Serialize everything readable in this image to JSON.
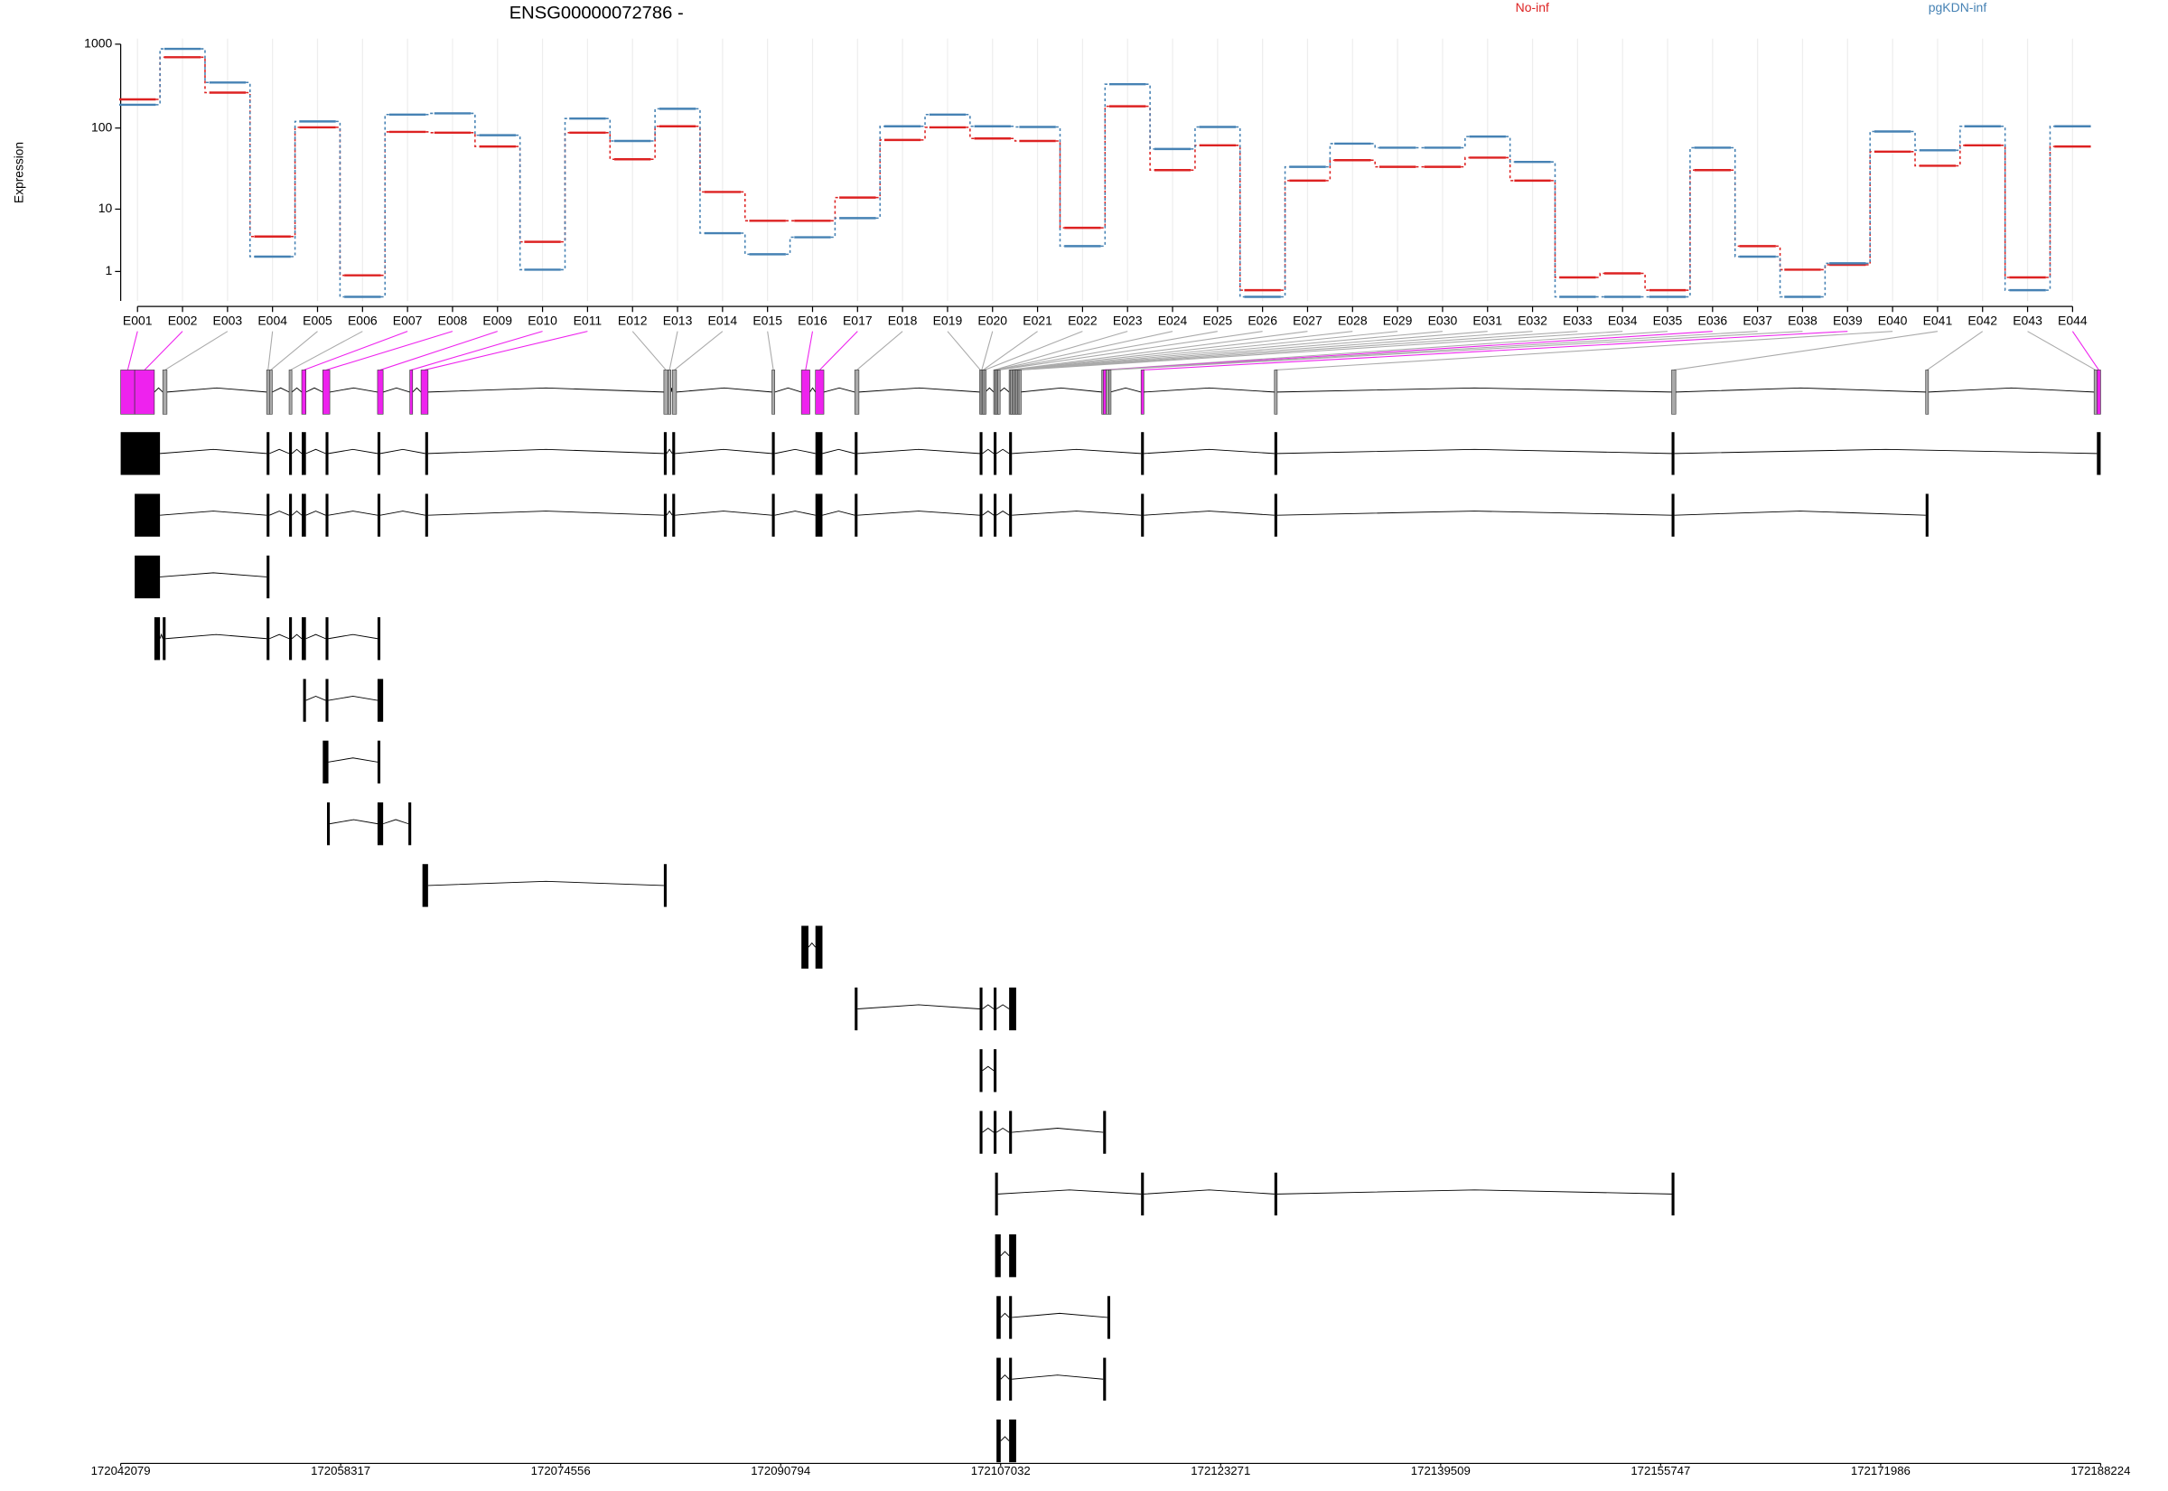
{
  "chart_data": [
    {
      "type": "line",
      "title": "ENSG00000072786 -",
      "y_label": "Expression",
      "categories": [
        "E001",
        "E002",
        "E003",
        "E004",
        "E005",
        "E006",
        "E007",
        "E008",
        "E009",
        "E010",
        "E011",
        "E012",
        "E013",
        "E014",
        "E015",
        "E016",
        "E017",
        "E018",
        "E019",
        "E020",
        "E021",
        "E022",
        "E023",
        "E024",
        "E025",
        "E026",
        "E027",
        "E028",
        "E029",
        "E030",
        "E031",
        "E032",
        "E033",
        "E034",
        "E035",
        "E036",
        "E037",
        "E038",
        "E039",
        "E040",
        "E041",
        "E042",
        "E043",
        "E044"
      ],
      "series": [
        {
          "name": "No-inf",
          "color": "#dd2222",
          "values": [
            220,
            700,
            265,
            4.2,
            102,
            0.8,
            90,
            88,
            60,
            3.5,
            88,
            42,
            105,
            16.6,
            7,
            7,
            14.1,
            72,
            102,
            75,
            70,
            5.6,
            182,
            31,
            62,
            0.2,
            23,
            41,
            34,
            34,
            44,
            23,
            0.7,
            0.9,
            0.2,
            31,
            3,
            1.1,
            1.4,
            52,
            35,
            62,
            0.7,
            60
          ]
        },
        {
          "name": "pgKDN-inf",
          "color": "#4682b4",
          "values": [
            190,
            880,
            350,
            2,
            120,
            0,
            145,
            150,
            82,
            1.1,
            130,
            70,
            170,
            4.7,
            2.2,
            4.1,
            7.6,
            105,
            145,
            105,
            103,
            3,
            334,
            56,
            103,
            0,
            34,
            65,
            58,
            58,
            79,
            39,
            0,
            0,
            0,
            58,
            2,
            0,
            1.5,
            91,
            54,
            105,
            0.2,
            105
          ]
        }
      ],
      "ylim": [
        0,
        1000
      ],
      "yticks": [
        1,
        10,
        100,
        1000
      ],
      "yscale": "log1p",
      "grid": "x",
      "step": true
    },
    {
      "type": "gene-model",
      "xlim": [
        172042079,
        172188224
      ],
      "xticks": [
        172042079,
        172058317,
        172074556,
        172090794,
        172107032,
        172123271,
        172139509,
        172155747,
        172171986,
        172188224
      ],
      "exon_color": "#000000",
      "exons": [
        {
          "start": 172042079,
          "end": 172043115,
          "color": "#ee22ee"
        },
        {
          "start": 172043115,
          "end": 172044565,
          "color": "#ee22ee"
        },
        {
          "start": 172045187,
          "end": 172045498,
          "color": "#aaaaaa"
        },
        {
          "start": 172052853,
          "end": 172053061,
          "color": "#aaaaaa"
        },
        {
          "start": 172053061,
          "end": 172053268,
          "color": "#aaaaaa"
        },
        {
          "start": 172054511,
          "end": 172054718,
          "color": "#aaaaaa"
        },
        {
          "start": 172055443,
          "end": 172055754,
          "color": "#ee22ee"
        },
        {
          "start": 172056997,
          "end": 172057515,
          "color": "#ee22ee"
        },
        {
          "start": 172061038,
          "end": 172061452,
          "color": "#ee22ee"
        },
        {
          "start": 172063421,
          "end": 172063628,
          "color": "#ee22ee"
        },
        {
          "start": 172064249,
          "end": 172064767,
          "color": "#ee22ee"
        },
        {
          "start": 172082172,
          "end": 172082483,
          "color": "#aaaaaa"
        },
        {
          "start": 172082483,
          "end": 172082690,
          "color": "#aaaaaa"
        },
        {
          "start": 172082794,
          "end": 172083105,
          "color": "#aaaaaa"
        },
        {
          "start": 172090149,
          "end": 172090357,
          "color": "#aaaaaa"
        },
        {
          "start": 172092325,
          "end": 172092947,
          "color": "#ee22ee"
        },
        {
          "start": 172093361,
          "end": 172093983,
          "color": "#ee22ee"
        },
        {
          "start": 172096262,
          "end": 172096573,
          "color": "#aaaaaa"
        },
        {
          "start": 172105482,
          "end": 172105586,
          "color": "#aaaaaa"
        },
        {
          "start": 172105586,
          "end": 172105689,
          "color": "#aaaaaa"
        },
        {
          "start": 172105689,
          "end": 172105793,
          "color": "#aaaaaa"
        },
        {
          "start": 172105793,
          "end": 172105896,
          "color": "#aaaaaa"
        },
        {
          "start": 172106518,
          "end": 172106622,
          "color": "#aaaaaa"
        },
        {
          "start": 172106622,
          "end": 172106725,
          "color": "#aaaaaa"
        },
        {
          "start": 172106725,
          "end": 172106829,
          "color": "#aaaaaa"
        },
        {
          "start": 172106829,
          "end": 172106933,
          "color": "#aaaaaa"
        },
        {
          "start": 172107658,
          "end": 172107762,
          "color": "#aaaaaa"
        },
        {
          "start": 172107762,
          "end": 172107865,
          "color": "#aaaaaa"
        },
        {
          "start": 172107865,
          "end": 172107969,
          "color": "#aaaaaa"
        },
        {
          "start": 172107969,
          "end": 172108072,
          "color": "#aaaaaa"
        },
        {
          "start": 172108072,
          "end": 172108176,
          "color": "#aaaaaa"
        },
        {
          "start": 172108176,
          "end": 172108280,
          "color": "#aaaaaa"
        },
        {
          "start": 172108280,
          "end": 172108383,
          "color": "#aaaaaa"
        },
        {
          "start": 172108383,
          "end": 172108487,
          "color": "#aaaaaa"
        },
        {
          "start": 172114495,
          "end": 172114599,
          "color": "#aaaaaa"
        },
        {
          "start": 172114599,
          "end": 172114806,
          "color": "#ee22ee"
        },
        {
          "start": 172114806,
          "end": 172115013,
          "color": "#aaaaaa"
        },
        {
          "start": 172115013,
          "end": 172115117,
          "color": "#aaaaaa"
        },
        {
          "start": 172117396,
          "end": 172117604,
          "color": "#ee22ee"
        },
        {
          "start": 172127238,
          "end": 172127445,
          "color": "#aaaaaa"
        },
        {
          "start": 172156557,
          "end": 172156868,
          "color": "#aaaaaa"
        },
        {
          "start": 172175308,
          "end": 172175516,
          "color": "#aaaaaa"
        },
        {
          "start": 172187741,
          "end": 172187948,
          "color": "#aaaaaa"
        },
        {
          "start": 172187948,
          "end": 172188224,
          "color": "#ee22ee"
        }
      ],
      "transcripts": [
        [
          [
            172042079,
            172044980
          ],
          [
            172052853,
            172053061
          ],
          [
            172054511,
            172054718
          ],
          [
            172055443,
            172055754
          ],
          [
            172057205,
            172057412
          ],
          [
            172061038,
            172061245
          ],
          [
            172064560,
            172064767
          ],
          [
            172082172,
            172082379
          ],
          [
            172082794,
            172083001
          ],
          [
            172090149,
            172090357
          ],
          [
            172093361,
            172093879
          ],
          [
            172096262,
            172096469
          ],
          [
            172105482,
            172105689
          ],
          [
            172106518,
            172106725
          ],
          [
            172107658,
            172107865
          ],
          [
            172117396,
            172117604
          ],
          [
            172127238,
            172127445
          ],
          [
            172156557,
            172156764
          ],
          [
            172187948,
            172188224
          ]
        ],
        [
          [
            172043115,
            172044980
          ],
          [
            172052853,
            172053061
          ],
          [
            172054511,
            172054718
          ],
          [
            172055443,
            172055754
          ],
          [
            172057205,
            172057412
          ],
          [
            172061038,
            172061245
          ],
          [
            172064560,
            172064767
          ],
          [
            172082172,
            172082379
          ],
          [
            172082794,
            172083001
          ],
          [
            172090149,
            172090357
          ],
          [
            172093361,
            172093879
          ],
          [
            172096262,
            172096469
          ],
          [
            172105482,
            172105689
          ],
          [
            172106518,
            172106725
          ],
          [
            172107658,
            172107865
          ],
          [
            172117396,
            172117604
          ],
          [
            172127238,
            172127445
          ],
          [
            172156557,
            172156764
          ],
          [
            172175308,
            172175516
          ]
        ],
        [
          [
            172043115,
            172044980
          ],
          [
            172052853,
            172053061
          ]
        ],
        [
          [
            172044565,
            172044980
          ],
          [
            172045187,
            172045394
          ],
          [
            172052853,
            172053061
          ],
          [
            172054511,
            172054718
          ],
          [
            172055443,
            172055754
          ],
          [
            172057205,
            172057412
          ],
          [
            172061038,
            172061245
          ]
        ],
        [
          [
            172055547,
            172055754
          ],
          [
            172057205,
            172057412
          ],
          [
            172061038,
            172061452
          ]
        ],
        [
          [
            172056997,
            172057412
          ],
          [
            172061038,
            172061245
          ]
        ],
        [
          [
            172057308,
            172057515
          ],
          [
            172061038,
            172061452
          ],
          [
            172063317,
            172063524
          ]
        ],
        [
          [
            172064353,
            172064767
          ],
          [
            172082172,
            172082379
          ]
        ],
        [
          [
            172092325,
            172092843
          ],
          [
            172093361,
            172093879
          ]
        ],
        [
          [
            172096262,
            172096469
          ],
          [
            172105482,
            172105689
          ],
          [
            172106518,
            172106725
          ],
          [
            172107658,
            172108176
          ]
        ],
        [
          [
            172105482,
            172105689
          ],
          [
            172106518,
            172106725
          ]
        ],
        [
          [
            172105482,
            172105689
          ],
          [
            172106518,
            172106725
          ],
          [
            172107658,
            172107865
          ],
          [
            172114599,
            172114806
          ]
        ],
        [
          [
            172106622,
            172106829
          ],
          [
            172117396,
            172117604
          ],
          [
            172127238,
            172127445
          ],
          [
            172156557,
            172156764
          ]
        ],
        [
          [
            172106622,
            172107036
          ],
          [
            172107658,
            172108176
          ]
        ],
        [
          [
            172106725,
            172107036
          ],
          [
            172107658,
            172107865
          ],
          [
            172114910,
            172115117
          ]
        ],
        [
          [
            172106725,
            172107036
          ],
          [
            172107658,
            172107865
          ],
          [
            172114599,
            172114806
          ]
        ],
        [
          [
            172106725,
            172107036
          ],
          [
            172107658,
            172108176
          ]
        ]
      ]
    }
  ]
}
